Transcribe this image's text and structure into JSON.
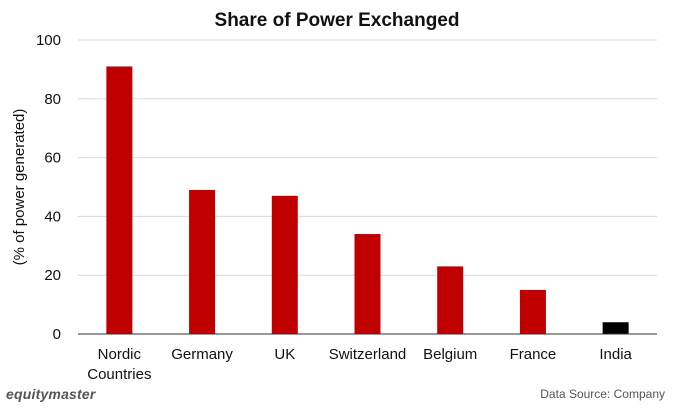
{
  "chart_data": {
    "type": "bar",
    "title": "Share of Power Exchanged",
    "ylabel": "(% of power generated)",
    "xlabel": "",
    "categories": [
      [
        "Nordic",
        "Countries"
      ],
      [
        "Germany"
      ],
      [
        "UK"
      ],
      [
        "Switzerland"
      ],
      [
        "Belgium"
      ],
      [
        "France"
      ],
      [
        "India"
      ]
    ],
    "values": [
      91,
      49,
      47,
      34,
      23,
      15,
      4
    ],
    "bar_colors": [
      "#c00000",
      "#c00000",
      "#c00000",
      "#c00000",
      "#c00000",
      "#c00000",
      "#000000"
    ],
    "ylim": [
      0,
      100
    ],
    "yticks": [
      0,
      20,
      40,
      60,
      80,
      100
    ],
    "grid": true,
    "legend": "none"
  },
  "footer": {
    "brand": "equitymaster",
    "source": "Data Source: Company"
  }
}
